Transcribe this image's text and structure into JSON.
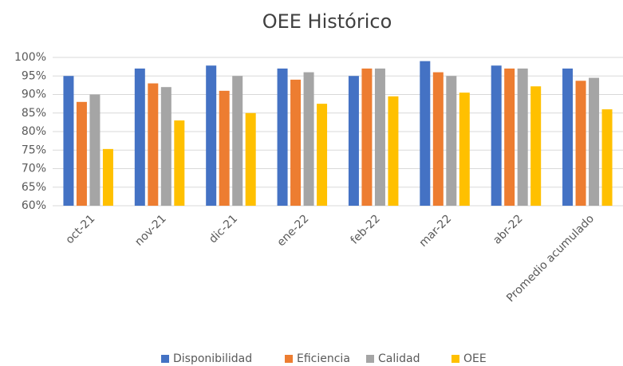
{
  "chart_data": {
    "type": "bar",
    "title": "OEE Histórico",
    "categories": [
      "oct-21",
      "nov-21",
      "dic-21",
      "ene-22",
      "feb-22",
      "mar-22",
      "abr-22",
      "Promedio acumulado"
    ],
    "series": [
      {
        "name": "Disponibilidad",
        "color": "#4472c4",
        "values": [
          95,
          97,
          97.8,
          97,
          95,
          99,
          97.8,
          97
        ]
      },
      {
        "name": "Eficiencia",
        "color": "#ed7d31",
        "values": [
          88,
          93,
          91,
          94,
          97,
          96,
          97,
          93.7
        ]
      },
      {
        "name": "Calidad",
        "color": "#a5a5a5",
        "values": [
          90,
          92,
          95,
          96,
          97,
          95,
          97,
          94.5
        ]
      },
      {
        "name": "OEE",
        "color": "#ffc000",
        "values": [
          75.3,
          83,
          85,
          87.5,
          89.5,
          90.5,
          92.2,
          86
        ]
      }
    ],
    "ylim": [
      60,
      100
    ],
    "yticks": [
      {
        "value": 60,
        "label": "60%"
      },
      {
        "value": 65,
        "label": "65%"
      },
      {
        "value": 70,
        "label": "70%"
      },
      {
        "value": 75,
        "label": "75%"
      },
      {
        "value": 80,
        "label": "80%"
      },
      {
        "value": 85,
        "label": "85%"
      },
      {
        "value": 90,
        "label": "90%"
      },
      {
        "value": 95,
        "label": "95%"
      },
      {
        "value": 100,
        "label": "100%"
      }
    ],
    "grid": true,
    "legend": "bottom"
  }
}
